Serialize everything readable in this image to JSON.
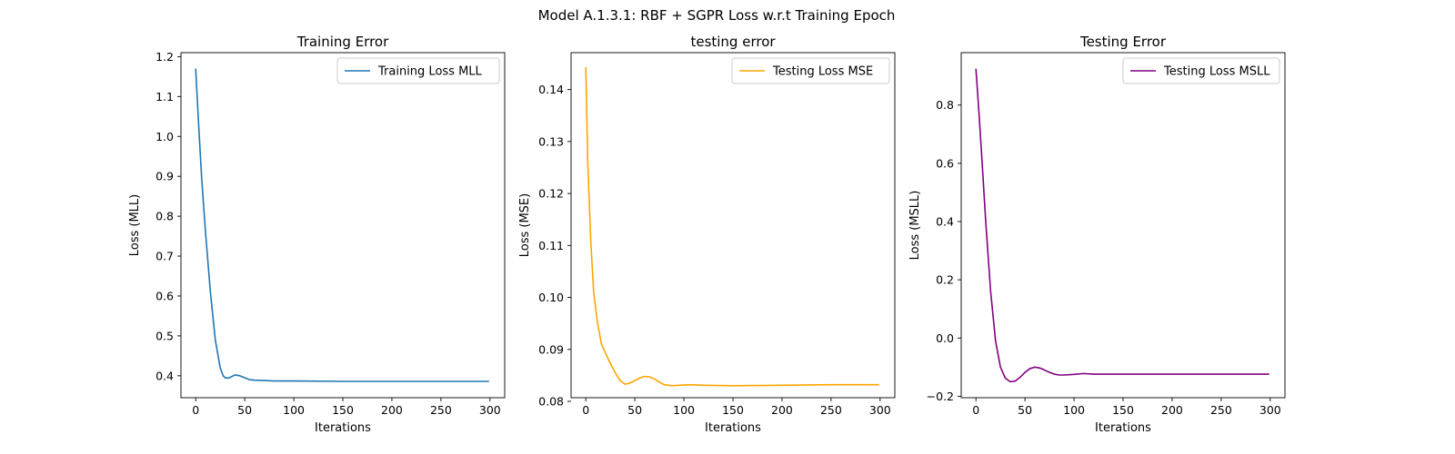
{
  "figure": {
    "suptitle": "Model A.1.3.1: RBF + SGPR Loss w.r.t Training Epoch"
  },
  "chart_data": [
    {
      "type": "line",
      "title": "Training Error",
      "xlabel": "Iterations",
      "ylabel": "Loss (MLL)",
      "xlim": [
        -15,
        315
      ],
      "ylim": [
        0.345,
        1.21
      ],
      "xticks": [
        0,
        50,
        100,
        150,
        200,
        250,
        300
      ],
      "xtick_labels": [
        "0",
        "50",
        "100",
        "150",
        "200",
        "250",
        "300"
      ],
      "yticks": [
        0.4,
        0.5,
        0.6,
        0.7,
        0.8,
        0.9,
        1.0,
        1.1,
        1.2
      ],
      "ytick_labels": [
        "0.4",
        "0.5",
        "0.6",
        "0.7",
        "0.8",
        "0.9",
        "1.0",
        "1.1",
        "1.2"
      ],
      "grid": false,
      "legend_position": "upper right",
      "series": [
        {
          "name": "Training Loss MLL",
          "color": "#1f77b4",
          "x": [
            0,
            3,
            6,
            10,
            15,
            20,
            25,
            28,
            30,
            33,
            36,
            40,
            45,
            50,
            55,
            60,
            70,
            80,
            100,
            150,
            200,
            250,
            299
          ],
          "y": [
            1.17,
            1.03,
            0.9,
            0.76,
            0.61,
            0.49,
            0.42,
            0.4,
            0.395,
            0.394,
            0.397,
            0.402,
            0.4,
            0.395,
            0.39,
            0.389,
            0.388,
            0.387,
            0.387,
            0.386,
            0.386,
            0.386,
            0.386
          ]
        }
      ]
    },
    {
      "type": "line",
      "title": "testing error",
      "xlabel": "Iterations",
      "ylabel": "Loss (MSE)",
      "xlim": [
        -15,
        315
      ],
      "ylim": [
        0.0807,
        0.1471
      ],
      "xticks": [
        0,
        50,
        100,
        150,
        200,
        250,
        300
      ],
      "xtick_labels": [
        "0",
        "50",
        "100",
        "150",
        "200",
        "250",
        "300"
      ],
      "yticks": [
        0.08,
        0.09,
        0.1,
        0.11,
        0.12,
        0.13,
        0.14
      ],
      "ytick_labels": [
        "0.08",
        "0.09",
        "0.10",
        "0.11",
        "0.12",
        "0.13",
        "0.14"
      ],
      "grid": false,
      "legend_position": "upper right",
      "series": [
        {
          "name": "Testing Loss MSE",
          "color": "#ffa500",
          "x": [
            0,
            2,
            5,
            8,
            12,
            16,
            20,
            25,
            30,
            35,
            40,
            45,
            50,
            55,
            60,
            65,
            70,
            75,
            80,
            88,
            95,
            105,
            120,
            150,
            200,
            250,
            299
          ],
          "y": [
            0.1443,
            0.126,
            0.111,
            0.101,
            0.095,
            0.091,
            0.0893,
            0.0873,
            0.0855,
            0.084,
            0.0833,
            0.0835,
            0.084,
            0.0845,
            0.0848,
            0.0847,
            0.0843,
            0.0837,
            0.0832,
            0.083,
            0.0831,
            0.0832,
            0.0831,
            0.083,
            0.0831,
            0.0832,
            0.0832
          ]
        }
      ]
    },
    {
      "type": "line",
      "title": "Testing Error",
      "xlabel": "Iterations",
      "ylabel": "Loss (MSLL)",
      "xlim": [
        -15,
        315
      ],
      "ylim": [
        -0.205,
        0.98
      ],
      "xticks": [
        0,
        50,
        100,
        150,
        200,
        250,
        300
      ],
      "xtick_labels": [
        "0",
        "50",
        "100",
        "150",
        "200",
        "250",
        "300"
      ],
      "yticks": [
        -0.2,
        0.0,
        0.2,
        0.4,
        0.6,
        0.8
      ],
      "ytick_labels": [
        "−0.2",
        "0.0",
        "0.2",
        "0.4",
        "0.6",
        "0.8"
      ],
      "grid": false,
      "legend_position": "upper right",
      "series": [
        {
          "name": "Testing Loss MSLL",
          "color": "#800080",
          "x": [
            0,
            3,
            6,
            10,
            15,
            20,
            25,
            30,
            35,
            40,
            45,
            50,
            55,
            60,
            65,
            70,
            75,
            80,
            85,
            90,
            100,
            110,
            120,
            150,
            200,
            250,
            299
          ],
          "y": [
            0.925,
            0.78,
            0.62,
            0.4,
            0.16,
            -0.01,
            -0.1,
            -0.138,
            -0.15,
            -0.148,
            -0.135,
            -0.118,
            -0.105,
            -0.1,
            -0.103,
            -0.11,
            -0.118,
            -0.124,
            -0.127,
            -0.127,
            -0.125,
            -0.122,
            -0.124,
            -0.124,
            -0.124,
            -0.124,
            -0.124
          ]
        }
      ]
    }
  ]
}
